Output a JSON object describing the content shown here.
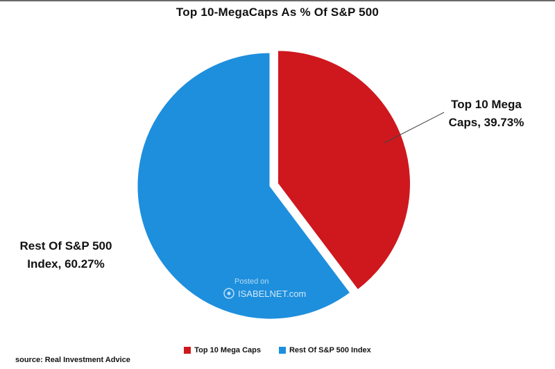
{
  "chart_data": {
    "type": "pie",
    "title": "Top 10-MegaCaps As % Of S&P 500",
    "slices": [
      {
        "name": "Top 10 Mega Caps",
        "value": 39.73,
        "percent_label": "39.73%",
        "data_label": "Top 10 Mega Caps, 39.73%",
        "color": "#CE181E",
        "exploded": true
      },
      {
        "name": "Rest Of S&P 500 Index",
        "value": 60.27,
        "percent_label": "60.27%",
        "data_label": "Rest Of S&P 500 Index, 60.27%",
        "color": "#1E8FDD",
        "exploded": false
      }
    ],
    "start_angle_deg": 0,
    "direction": "clockwise",
    "legend_position": "bottom",
    "units": "%"
  },
  "watermark": {
    "prefix": "Posted on",
    "site": "ISABELNET.com"
  },
  "footer": {
    "source": "source: Real Investment Advice"
  }
}
